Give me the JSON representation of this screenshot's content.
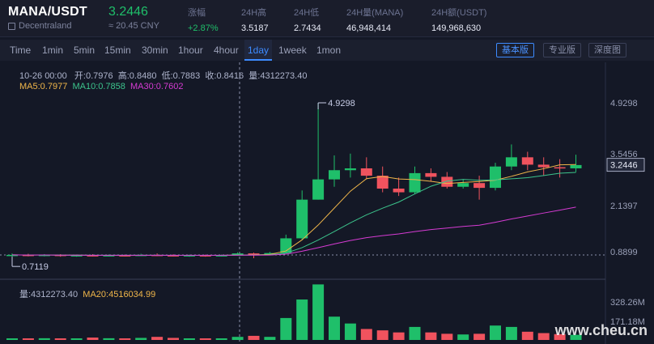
{
  "header": {
    "pair": "MANA/USDT",
    "exchange": "Decentraland",
    "price": "3.2446",
    "price_cny": "≈ 20.45 CNY",
    "stats": [
      {
        "label": "涨幅",
        "value": "+2.87%"
      },
      {
        "label": "24H高",
        "value": "3.5187"
      },
      {
        "label": "24H低",
        "value": "2.7434"
      },
      {
        "label": "24H量(MANA)",
        "value": "46,948,414"
      },
      {
        "label": "24H额(USDT)",
        "value": "149,968,630"
      }
    ]
  },
  "toolbar": {
    "timeframes": [
      "Time",
      "1min",
      "5min",
      "15min",
      "30min",
      "1hour",
      "4hour",
      "1day",
      "1week",
      "1mon"
    ],
    "active_timeframe": "1day",
    "views": [
      "基本版",
      "专业版",
      "深度图"
    ],
    "active_view": "基本版"
  },
  "info": {
    "date": "10-26 00:00",
    "open_label": "开:",
    "open": "0.7976",
    "high_label": "高:",
    "high": "0.8480",
    "low_label": "低:",
    "low": "0.7883",
    "close_label": "收:",
    "close": "0.8416",
    "vol_label": "量:",
    "vol": "4312273.40",
    "ma5": "MA5:0.7977",
    "ma10": "MA10:0.7858",
    "ma30": "MA30:0.7602",
    "vol_text": "量:4312273.40",
    "ma20": "MA20:4516034.99"
  },
  "chart_data": {
    "type": "candlestick",
    "price_ticks": [
      "4.9298",
      "3.5456",
      "2.1397",
      "0.8899"
    ],
    "current_price": "3.2446",
    "max_label": "4.9298",
    "min_label": "0.7119",
    "volume_ticks": [
      "328.26M",
      "171.18M"
    ],
    "candles": [
      {
        "o": 0.78,
        "c": 0.8,
        "h": 0.84,
        "l": 0.74,
        "v": 4
      },
      {
        "o": 0.8,
        "c": 0.79,
        "h": 0.83,
        "l": 0.76,
        "v": 4
      },
      {
        "o": 0.79,
        "c": 0.8,
        "h": 0.82,
        "l": 0.76,
        "v": 5
      },
      {
        "o": 0.8,
        "c": 0.78,
        "h": 0.82,
        "l": 0.75,
        "v": 4
      },
      {
        "o": 0.78,
        "c": 0.79,
        "h": 0.81,
        "l": 0.75,
        "v": 4
      },
      {
        "o": 0.79,
        "c": 0.78,
        "h": 0.82,
        "l": 0.76,
        "v": 7
      },
      {
        "o": 0.78,
        "c": 0.79,
        "h": 0.81,
        "l": 0.76,
        "v": 5
      },
      {
        "o": 0.79,
        "c": 0.78,
        "h": 0.81,
        "l": 0.76,
        "v": 4
      },
      {
        "o": 0.78,
        "c": 0.8,
        "h": 0.83,
        "l": 0.77,
        "v": 6
      },
      {
        "o": 0.8,
        "c": 0.79,
        "h": 0.84,
        "l": 0.77,
        "v": 9
      },
      {
        "o": 0.79,
        "c": 0.78,
        "h": 0.82,
        "l": 0.76,
        "v": 6
      },
      {
        "o": 0.78,
        "c": 0.79,
        "h": 0.81,
        "l": 0.75,
        "v": 4
      },
      {
        "o": 0.79,
        "c": 0.78,
        "h": 0.81,
        "l": 0.75,
        "v": 4
      },
      {
        "o": 0.78,
        "c": 0.79,
        "h": 0.81,
        "l": 0.76,
        "v": 4
      },
      {
        "o": 0.79,
        "c": 0.84,
        "h": 0.87,
        "l": 0.78,
        "v": 9
      },
      {
        "o": 0.84,
        "c": 0.8,
        "h": 0.86,
        "l": 0.71,
        "v": 12
      },
      {
        "o": 0.8,
        "c": 0.85,
        "h": 0.88,
        "l": 0.79,
        "v": 9
      },
      {
        "o": 0.85,
        "c": 1.25,
        "h": 1.35,
        "l": 0.84,
        "v": 64
      },
      {
        "o": 1.25,
        "c": 2.3,
        "h": 2.55,
        "l": 1.2,
        "v": 118
      },
      {
        "o": 2.3,
        "c": 2.85,
        "h": 4.93,
        "l": 2.3,
        "v": 162
      },
      {
        "o": 2.85,
        "c": 3.1,
        "h": 3.5,
        "l": 2.65,
        "v": 68
      },
      {
        "o": 3.1,
        "c": 3.15,
        "h": 3.55,
        "l": 2.9,
        "v": 48
      },
      {
        "o": 3.15,
        "c": 2.95,
        "h": 3.45,
        "l": 2.85,
        "v": 32
      },
      {
        "o": 2.95,
        "c": 2.6,
        "h": 3.2,
        "l": 2.5,
        "v": 28
      },
      {
        "o": 2.6,
        "c": 2.5,
        "h": 2.9,
        "l": 2.4,
        "v": 22
      },
      {
        "o": 2.5,
        "c": 3.02,
        "h": 3.2,
        "l": 2.45,
        "v": 38
      },
      {
        "o": 3.02,
        "c": 2.92,
        "h": 3.15,
        "l": 2.8,
        "v": 22
      },
      {
        "o": 2.92,
        "c": 2.65,
        "h": 3.05,
        "l": 2.6,
        "v": 18
      },
      {
        "o": 2.65,
        "c": 2.75,
        "h": 2.85,
        "l": 2.6,
        "v": 16
      },
      {
        "o": 2.75,
        "c": 2.62,
        "h": 2.95,
        "l": 2.3,
        "v": 18
      },
      {
        "o": 2.62,
        "c": 3.2,
        "h": 3.3,
        "l": 2.55,
        "v": 42
      },
      {
        "o": 3.2,
        "c": 3.45,
        "h": 3.8,
        "l": 3.1,
        "v": 38
      },
      {
        "o": 3.45,
        "c": 3.25,
        "h": 3.6,
        "l": 3.1,
        "v": 24
      },
      {
        "o": 3.25,
        "c": 3.18,
        "h": 3.45,
        "l": 2.95,
        "v": 20
      },
      {
        "o": 3.18,
        "c": 3.15,
        "h": 3.4,
        "l": 2.9,
        "v": 17
      },
      {
        "o": 3.15,
        "c": 3.24,
        "h": 3.52,
        "l": 3.05,
        "v": 15
      }
    ]
  },
  "colors": {
    "up": "#1fbf6a",
    "down": "#f0535e",
    "ma5": "#f0b64a",
    "ma10": "#3cc48c",
    "ma30": "#d63bd3",
    "accent": "#3d8bff"
  },
  "watermark": "www.cheu.cn"
}
